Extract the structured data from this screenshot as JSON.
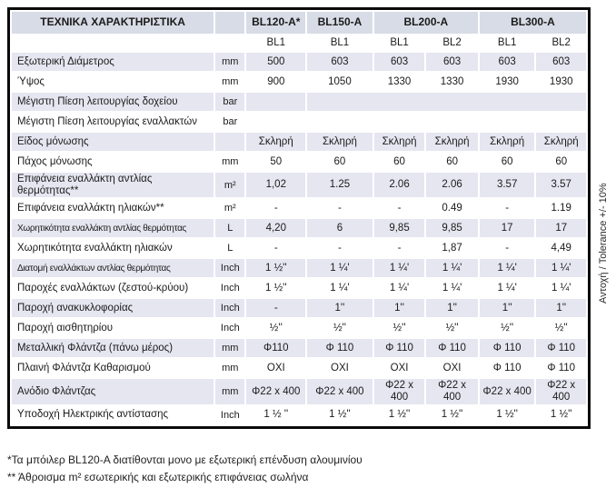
{
  "table": {
    "corner_header": "ΤΕΧΝΙΚΑ ΧΑΡΑΚΤΗΡΙΣΤΙΚΑ",
    "model_headers": [
      {
        "label": "BL120-A*",
        "span": 1
      },
      {
        "label": "BL150-A",
        "span": 1
      },
      {
        "label": "BL200-A",
        "span": 2
      },
      {
        "label": "BL300-A",
        "span": 2
      }
    ],
    "sub_headers": [
      "BL1",
      "BL1",
      "BL1",
      "BL2",
      "BL1",
      "BL2"
    ],
    "rows": [
      {
        "label": "Εξωτερική  Διάμετρος",
        "unit": "mm",
        "values": [
          "500",
          "603",
          "603",
          "603",
          "603",
          "603"
        ]
      },
      {
        "label": "Ύψος",
        "unit": "mm",
        "values": [
          "900",
          "1050",
          "1330",
          "1330",
          "1930",
          "1930"
        ]
      },
      {
        "label": "Μέγιστη Πίεση λειτουργίας δοχείου",
        "unit": "bar",
        "merged": true,
        "values": [
          "",
          "",
          "",
          "",
          "",
          ""
        ]
      },
      {
        "label": "Μέγιστη Πίεση λειτουργίας εναλλακτών",
        "unit": "bar",
        "values": [
          "",
          "",
          "",
          "",
          "",
          ""
        ]
      },
      {
        "label": "Είδος μόνωσης",
        "unit": "",
        "values": [
          "Σκληρή",
          "Σκληρή",
          "Σκληρή",
          "Σκληρή",
          "Σκληρή",
          "Σκληρή"
        ]
      },
      {
        "label": "Πάχος μόνωσης",
        "unit": "mm",
        "values": [
          "50",
          "60",
          "60",
          "60",
          "60",
          "60"
        ]
      },
      {
        "label": "Επιφάνεια εναλλάκτη αντλίας θερμότητας**",
        "unit": "m²",
        "values": [
          "1,02",
          "1.25",
          "2.06",
          "2.06",
          "3.57",
          "3.57"
        ]
      },
      {
        "label": "Επιφάνεια εναλλάκτη ηλιακών**",
        "unit": "m²",
        "values": [
          "-",
          "-",
          "-",
          "0.49",
          "-",
          "1.19"
        ]
      },
      {
        "label": "Χωρητικότητα εναλλάκτη αντλίας θερμότητας",
        "unit": "L",
        "values": [
          "4,20",
          "6",
          "9,85",
          "9,85",
          "17",
          "17"
        ]
      },
      {
        "label": "Χωρητικότητα εναλλάκτη ηλιακών",
        "unit": "L",
        "values": [
          "-",
          "-",
          "-",
          "1,87",
          "-",
          "4,49"
        ]
      },
      {
        "label": "Διατομή εναλλάκτων αντλίας θερμότητας",
        "unit": "Inch",
        "values": [
          "1 ½''",
          "1 ¼'",
          "1 ¼'",
          "1 ¼'",
          "1 ¼'",
          "1 ¼'"
        ]
      },
      {
        "label": "Παροχές εναλλάκτων (ζεστού-κρύου)",
        "unit": "Inch",
        "values": [
          "1 ½''",
          "1 ¼'",
          "1 ¼'",
          "1 ¼'",
          "1 ¼'",
          "1 ¼'"
        ]
      },
      {
        "label": "Παροχή ανακυκλοφορίας",
        "unit": "Inch",
        "values": [
          "-",
          "1''",
          "1''",
          "1''",
          "1''",
          "1''"
        ]
      },
      {
        "label": "Παροχή αισθητηρίου",
        "unit": "Inch",
        "values": [
          "½''",
          "½''",
          "½''",
          "½''",
          "½''",
          "½''"
        ]
      },
      {
        "label": "Μεταλλική Φλάντζα (πάνω μέρος)",
        "unit": "mm",
        "values": [
          "Φ110",
          "Φ 110",
          "Φ 110",
          "Φ 110",
          "Φ 110",
          "Φ 110"
        ]
      },
      {
        "label": "Πλαινή Φλάντζα Καθαρισμού",
        "unit": "mm",
        "values": [
          "OXI",
          "OXI",
          "OXI",
          "OXI",
          "Φ 110",
          "Φ 110"
        ]
      },
      {
        "label": "Ανόδιο Φλάντζας",
        "unit": "mm",
        "values": [
          "Φ22 x 400",
          "Φ22 x 400",
          "Φ22 x 400",
          "Φ22 x 400",
          "Φ22 x 400",
          "Φ22 x 400"
        ]
      },
      {
        "label": "Υποδοχή Ηλεκτρικής αντίστασης",
        "unit": "Inch",
        "values": [
          "1 ½ ''",
          "1 ½''",
          "1 ½''",
          "1 ½''",
          "1 ½''",
          "1 ½''"
        ]
      }
    ]
  },
  "side_note": "Αντοχή / Tolerance +/- 10%",
  "footnotes": [
    "*Τα μπόιλερ BL120-Α διατίθονται μονο με εξωτερική επένδυση αλουμινίου",
    "** Άθροισμα m² εσωτερικής και εξωτερικής επιφάνειας σωλήνα"
  ],
  "colors": {
    "header_bg": "#d8dce6",
    "stripe_bg": "#e6e6f1",
    "border": "#0b0b0b",
    "text": "#1b1b1b"
  }
}
